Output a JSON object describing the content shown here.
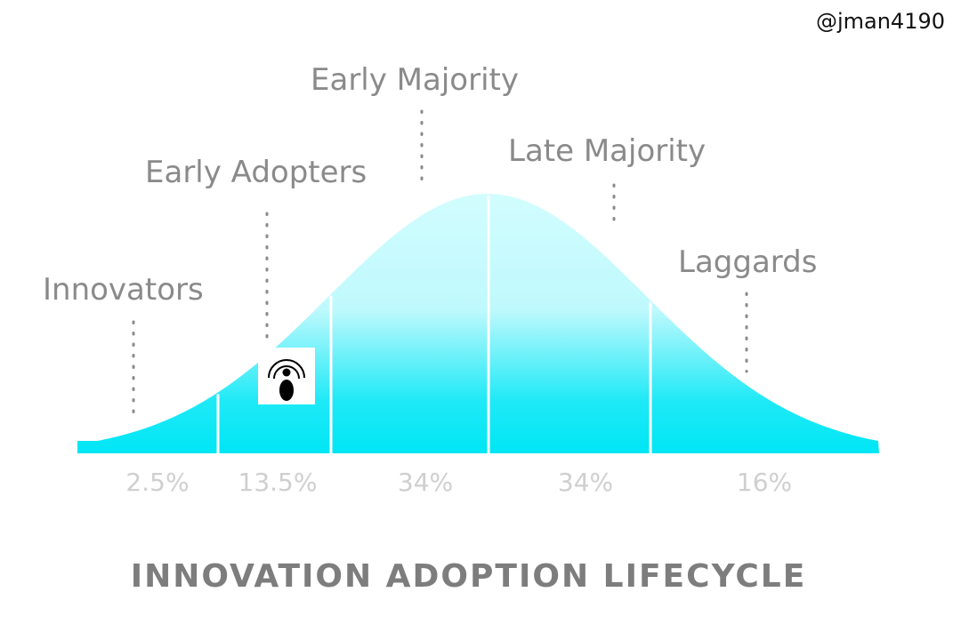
{
  "handle": "@jman4190",
  "title": "INNOVATION ADOPTION LIFECYCLE",
  "colors": {
    "curve_top": "#d2fdfe",
    "curve_bottom": "#00e6f5",
    "label": "#8a8a8a",
    "pct": "#cfcfcf"
  },
  "segments": [
    {
      "label": "Innovators",
      "percent": "2.5%"
    },
    {
      "label": "Early Adopters",
      "percent": "13.5%"
    },
    {
      "label": "Early Majority",
      "percent": "34%"
    },
    {
      "label": "Late Majority",
      "percent": "34%"
    },
    {
      "label": "Laggards",
      "percent": "16%"
    }
  ],
  "marker": {
    "icon": "person-broadcast-icon"
  }
}
